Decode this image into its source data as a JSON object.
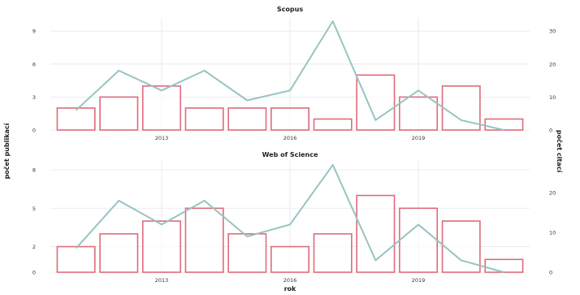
{
  "page": {
    "left_axis_label": "počet publikací",
    "right_axis_label": "počet citací",
    "x_axis_label": "rok"
  },
  "colors": {
    "bar_stroke": "#de6b7a",
    "bar_fill": "#ffffff",
    "line": "#97c4c1",
    "grid": "#e6e6e6",
    "text": "#222222",
    "axis_text": "#333333"
  },
  "chart_data": [
    {
      "type": "bar+line",
      "title": "Scopus",
      "x": [
        2011,
        2012,
        2013,
        2014,
        2015,
        2016,
        2017,
        2018,
        2019,
        2020,
        2021
      ],
      "x_ticks": [
        2013,
        2016,
        2019
      ],
      "xlim": [
        2010.4,
        2021.6
      ],
      "bars": {
        "axis": "left",
        "values": [
          2,
          3,
          4,
          2,
          2,
          2,
          1,
          5,
          3,
          4,
          1
        ]
      },
      "line": {
        "axis": "right",
        "values": [
          6,
          18,
          12,
          18,
          9,
          12,
          33,
          3,
          12,
          3,
          0
        ]
      },
      "y_left": {
        "ticks": [
          0,
          3,
          6,
          9
        ],
        "ylim": [
          0,
          10.2
        ]
      },
      "y_right": {
        "ticks": [
          0,
          10,
          20,
          30
        ],
        "ylim": [
          0,
          34
        ]
      },
      "grid": true
    },
    {
      "type": "bar+line",
      "title": "Web of Science",
      "x": [
        2011,
        2012,
        2013,
        2014,
        2015,
        2016,
        2017,
        2018,
        2019,
        2020,
        2021
      ],
      "x_ticks": [
        2013,
        2016,
        2019
      ],
      "xlim": [
        2010.4,
        2021.6
      ],
      "bars": {
        "axis": "left",
        "values": [
          2,
          3,
          4,
          5,
          3,
          2,
          3,
          6,
          5,
          4,
          1
        ]
      },
      "line": {
        "axis": "right",
        "values": [
          6,
          18,
          12,
          18,
          9,
          12,
          27,
          3,
          12,
          3,
          0
        ]
      },
      "y_left": {
        "ticks": [
          0,
          2,
          5,
          8
        ],
        "ylim": [
          0,
          8.7
        ]
      },
      "y_right": {
        "ticks": [
          0,
          10,
          20
        ],
        "ylim": [
          0,
          28
        ]
      },
      "grid": true
    }
  ]
}
